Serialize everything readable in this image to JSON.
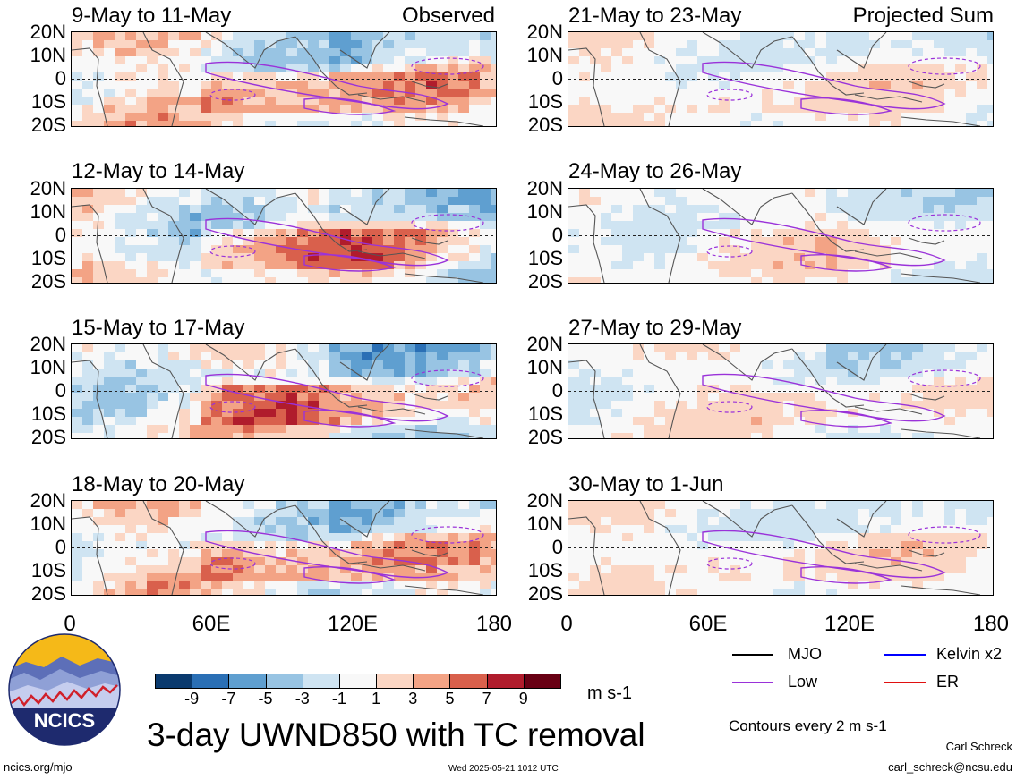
{
  "panels": [
    {
      "title": "9-May to 11-May",
      "tag": "Observed"
    },
    {
      "title": "21-May to 23-May",
      "tag": "Projected Sum"
    },
    {
      "title": "12-May to 14-May",
      "tag": ""
    },
    {
      "title": "24-May to 26-May",
      "tag": ""
    },
    {
      "title": "15-May to 17-May",
      "tag": ""
    },
    {
      "title": "27-May to 29-May",
      "tag": ""
    },
    {
      "title": "18-May to 20-May",
      "tag": ""
    },
    {
      "title": "30-May to 1-Jun",
      "tag": ""
    }
  ],
  "chart_data": {
    "type": "heatmap",
    "title": "3-day UWND850 with TC removal",
    "units": "m s-1",
    "x_ticks": [
      "0",
      "60E",
      "120E",
      "180"
    ],
    "y_ticks": [
      "20N",
      "10N",
      "0",
      "10S",
      "20S"
    ],
    "xlim": [
      0,
      180
    ],
    "ylim": [
      -20,
      20
    ],
    "colorbar": {
      "labels": [
        "-9",
        "-7",
        "-5",
        "-3",
        "-1",
        "1",
        "3",
        "5",
        "7",
        "9"
      ],
      "colors": [
        "#0a3a6e",
        "#2a6fb5",
        "#5f9fd0",
        "#98c4e3",
        "#cfe4f2",
        "#f8f8f8",
        "#fbd6c4",
        "#f3a385",
        "#d9604c",
        "#b01c2c",
        "#680014"
      ]
    },
    "contour_legend": [
      {
        "name": "MJO",
        "color": "#000000"
      },
      {
        "name": "Kelvin x2",
        "color": "#0000ff"
      },
      {
        "name": "Low",
        "color": "#9a32d9"
      },
      {
        "name": "ER",
        "color": "#e01010"
      }
    ],
    "contour_note": "Contours every 2 m s-1"
  },
  "logo": {
    "text": "NCICS"
  },
  "footer": {
    "left_url": "ncics.org/mjo",
    "timestamp": "Wed 2025-05-21 1012 UTC",
    "author": "Carl Schreck",
    "email": "carl_schreck@ncsu.edu"
  }
}
